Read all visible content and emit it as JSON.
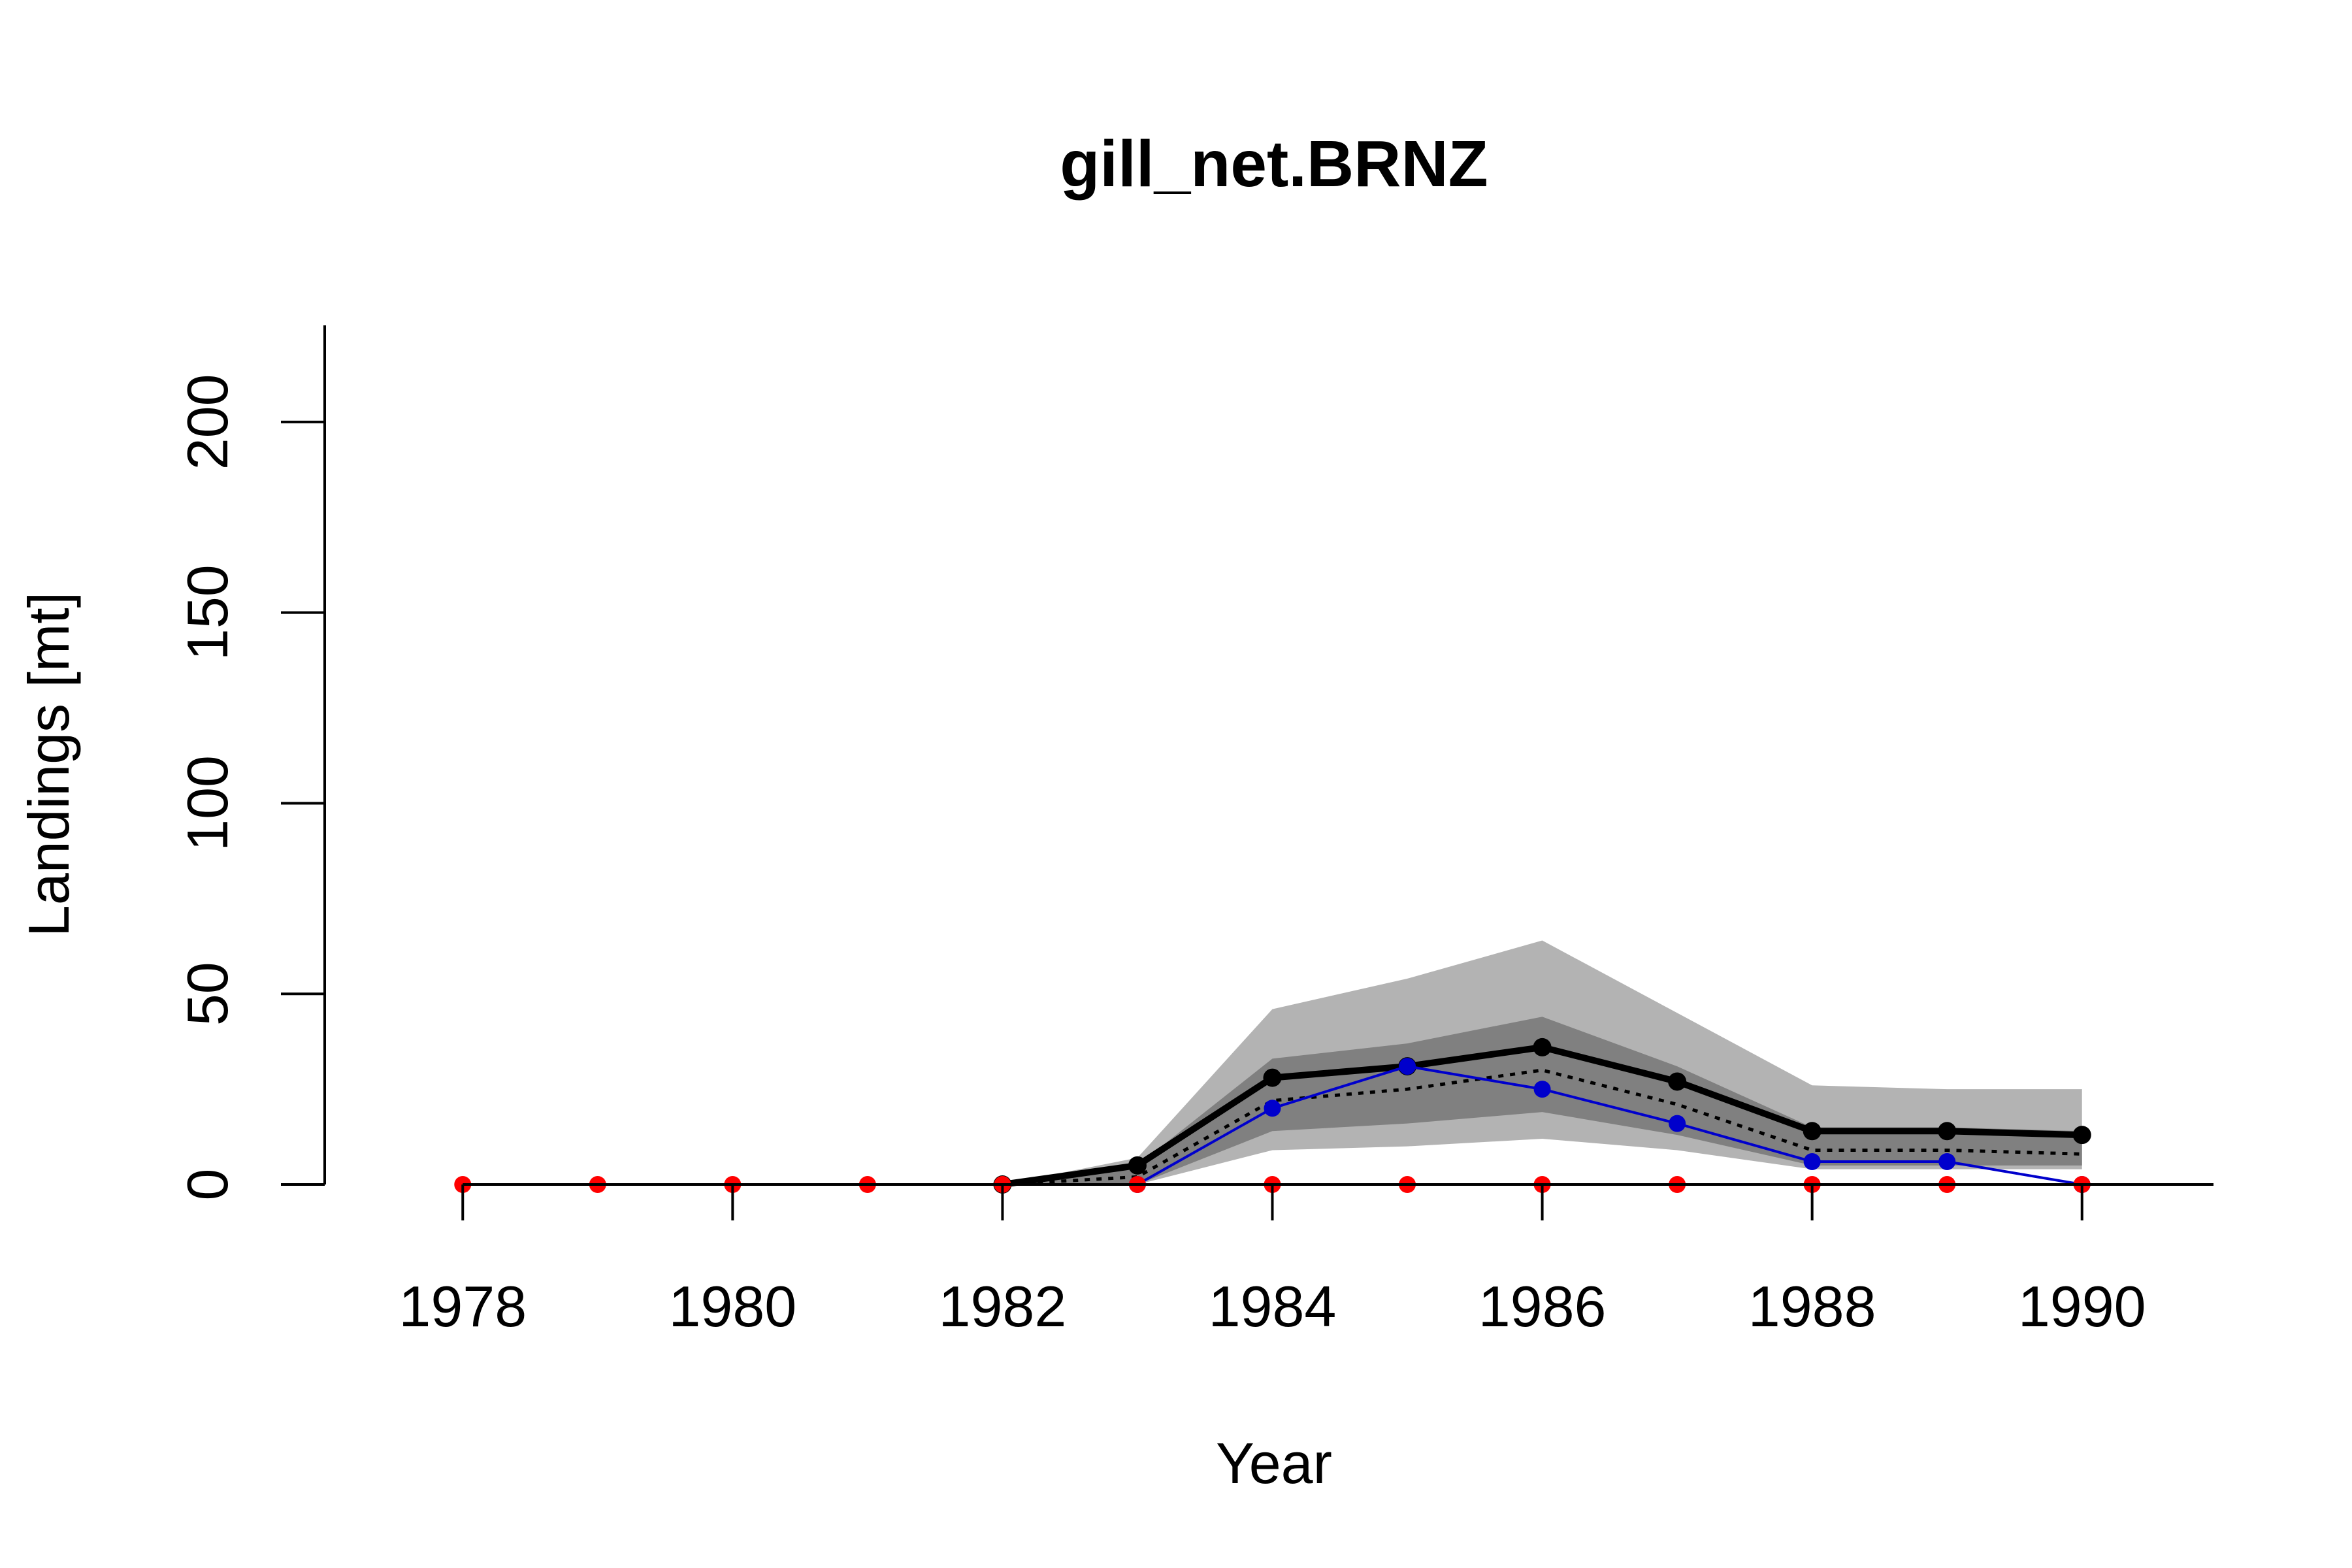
{
  "chart_data": {
    "type": "line",
    "title": "gill_net.BRNZ",
    "xlabel": "Year",
    "ylabel": "Landings [mt]",
    "xlim": [
      1977.5,
      1990.5
    ],
    "ylim": [
      0,
      225
    ],
    "x_ticks": [
      "1978",
      "1980",
      "1982",
      "1984",
      "1986",
      "1988",
      "1990"
    ],
    "y_ticks": [
      "0",
      "50",
      "100",
      "150",
      "200"
    ],
    "grid": false,
    "legend": "none",
    "x": [
      1978,
      1979,
      1980,
      1981,
      1982,
      1983,
      1984,
      1985,
      1986,
      1987,
      1988,
      1989,
      1990
    ],
    "bands": [
      {
        "color": "#b3b3b3",
        "x": [
          1982,
          1983,
          1984,
          1985,
          1986,
          1987,
          1988,
          1989,
          1990
        ],
        "lower": [
          0,
          0,
          9,
          10,
          12,
          9,
          4,
          4,
          4
        ],
        "upper": [
          0,
          7,
          46,
          54,
          64,
          45,
          26,
          25,
          25
        ]
      },
      {
        "color": "#808080",
        "x": [
          1982,
          1983,
          1984,
          1985,
          1986,
          1987,
          1988,
          1989,
          1990
        ],
        "lower": [
          0,
          0,
          14,
          16,
          19,
          13,
          5,
          5,
          5
        ],
        "upper": [
          0,
          5,
          33,
          37,
          44,
          31,
          15,
          15,
          14
        ]
      }
    ],
    "series": [
      {
        "color": "#000000",
        "style": "dotted",
        "x": [
          1982,
          1983,
          1984,
          1985,
          1986,
          1987,
          1988,
          1989,
          1990
        ],
        "values": [
          0,
          2,
          22,
          25,
          30,
          21,
          9,
          9,
          8
        ]
      },
      {
        "color": "#000000",
        "style": "bold-points",
        "x": [
          1982,
          1983,
          1984,
          1985,
          1986,
          1987,
          1988,
          1989,
          1990
        ],
        "values": [
          0,
          5,
          28,
          31,
          36,
          27,
          14,
          14,
          13
        ]
      },
      {
        "color": "#0000cc",
        "style": "thin-points",
        "x": [
          1983,
          1984,
          1985,
          1986,
          1987,
          1988,
          1989,
          1990
        ],
        "values": [
          0,
          20,
          31,
          25,
          16,
          6,
          6,
          0
        ]
      },
      {
        "color": "#ff0000",
        "style": "thin-points",
        "x": [
          1978,
          1979,
          1980,
          1981,
          1982,
          1983,
          1984,
          1985,
          1986,
          1987,
          1988,
          1989,
          1990
        ],
        "values": [
          0,
          0,
          0,
          0,
          0,
          0,
          0,
          0,
          0,
          0,
          0,
          0,
          0
        ]
      }
    ]
  }
}
